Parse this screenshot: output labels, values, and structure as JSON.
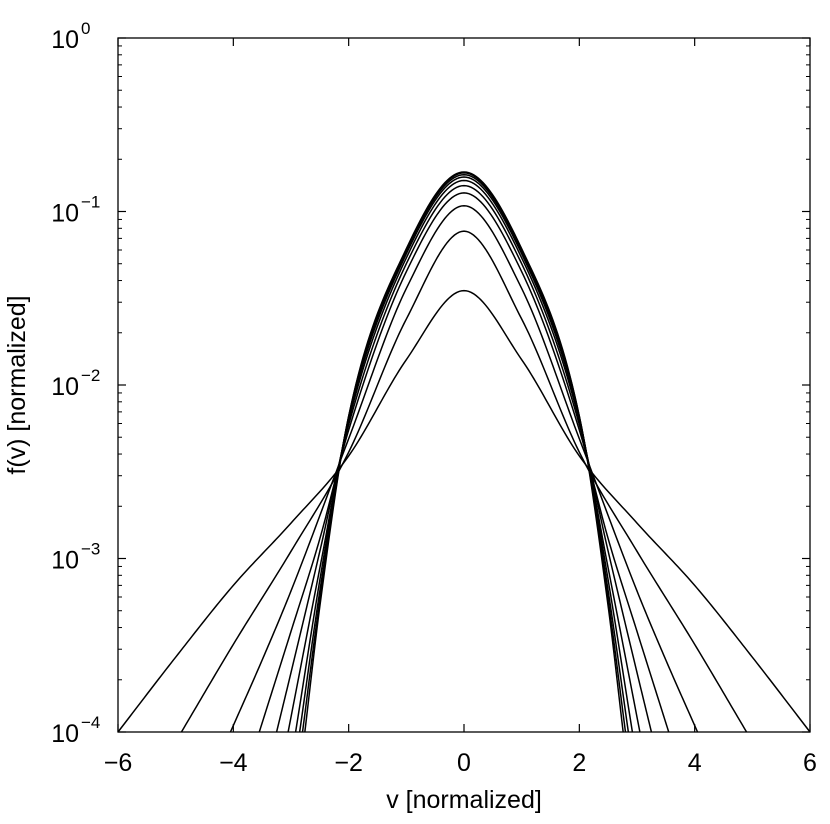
{
  "chart_data": {
    "type": "line",
    "xlabel": "v [normalized]",
    "ylabel": "f(v) [normalized]",
    "xlim": [
      -6,
      6
    ],
    "ylim": [
      0.0001,
      1
    ],
    "yscale": "log",
    "grid": false,
    "legend": "none",
    "xticks": [
      {
        "value": -6,
        "label": "−6"
      },
      {
        "value": -4,
        "label": "−4"
      },
      {
        "value": -2,
        "label": "−2"
      },
      {
        "value": 0,
        "label": "0"
      },
      {
        "value": 2,
        "label": "2"
      },
      {
        "value": 4,
        "label": "4"
      },
      {
        "value": 6,
        "label": "6"
      }
    ],
    "yticks": [
      {
        "value": 0.0001,
        "base": "10",
        "exp": "−4"
      },
      {
        "value": 0.001,
        "base": "10",
        "exp": "−3"
      },
      {
        "value": 0.01,
        "base": "10",
        "exp": "−2"
      },
      {
        "value": 0.1,
        "base": "10",
        "exp": "−1"
      },
      {
        "value": 1,
        "base": "10",
        "exp": "0"
      }
    ],
    "series": [
      {
        "x": [
          -6,
          -5,
          -4,
          -3,
          -2,
          -1,
          0,
          1,
          2,
          3,
          4,
          5,
          6
        ],
        "y": [
          0.0001,
          0.00027,
          0.0007,
          0.0016,
          0.0039,
          0.014,
          0.035,
          0.014,
          0.0039,
          0.0016,
          0.0007,
          0.00027,
          0.0001
        ]
      },
      {
        "x": [
          -4.9,
          -4,
          -3,
          -2,
          -1,
          0,
          1,
          2,
          3,
          4,
          4.9
        ],
        "y": [
          0.0001,
          0.00032,
          0.0011,
          0.0041,
          0.024,
          0.077,
          0.024,
          0.0041,
          0.0011,
          0.00032,
          0.0001
        ]
      },
      {
        "x": [
          -4.05,
          -3.5,
          -3,
          -2,
          -1,
          0,
          1,
          2,
          3,
          3.5,
          4.05
        ],
        "y": [
          0.0001,
          0.00026,
          0.00065,
          0.0049,
          0.036,
          0.108,
          0.036,
          0.0049,
          0.00065,
          0.00026,
          0.0001
        ]
      },
      {
        "x": [
          -3.55,
          -3,
          -2.5,
          -2,
          -1,
          0,
          1,
          2,
          2.5,
          3,
          3.55
        ],
        "y": [
          0.0001,
          0.00038,
          0.0013,
          0.0055,
          0.045,
          0.128,
          0.045,
          0.0055,
          0.0013,
          0.00038,
          0.0001
        ]
      },
      {
        "x": [
          -3.25,
          -3,
          -2.5,
          -2,
          -1,
          0,
          1,
          2,
          2.5,
          3,
          3.25
        ],
        "y": [
          0.0001,
          0.00022,
          0.0011,
          0.0059,
          0.05,
          0.141,
          0.05,
          0.0059,
          0.0011,
          0.00022,
          0.0001
        ]
      },
      {
        "x": [
          -3.05,
          -2.5,
          -2,
          -1,
          0,
          1,
          2,
          2.5,
          3.05
        ],
        "y": [
          0.0001,
          0.00088,
          0.0062,
          0.054,
          0.151,
          0.054,
          0.0062,
          0.00088,
          0.0001
        ]
      },
      {
        "x": [
          -2.92,
          -2.5,
          -2,
          -1,
          0,
          1,
          2,
          2.5,
          2.92
        ],
        "y": [
          0.0001,
          0.00075,
          0.0064,
          0.057,
          0.158,
          0.057,
          0.0064,
          0.00075,
          0.0001
        ]
      },
      {
        "x": [
          -2.85,
          -2.5,
          -2,
          -1,
          0,
          1,
          2,
          2.5,
          2.85
        ],
        "y": [
          0.0001,
          0.00065,
          0.0065,
          0.059,
          0.163,
          0.059,
          0.0065,
          0.00065,
          0.0001
        ]
      },
      {
        "x": [
          -2.8,
          -2.5,
          -2,
          -1,
          0,
          1,
          2,
          2.5,
          2.8
        ],
        "y": [
          0.0001,
          0.00058,
          0.0066,
          0.06,
          0.167,
          0.06,
          0.0066,
          0.00058,
          0.0001
        ]
      },
      {
        "x": [
          -2.76,
          -2.5,
          -2,
          -1,
          0,
          1,
          2,
          2.5,
          2.76
        ],
        "y": [
          0.0001,
          0.00053,
          0.0066,
          0.061,
          0.169,
          0.061,
          0.0066,
          0.00053,
          0.0001
        ]
      }
    ]
  }
}
